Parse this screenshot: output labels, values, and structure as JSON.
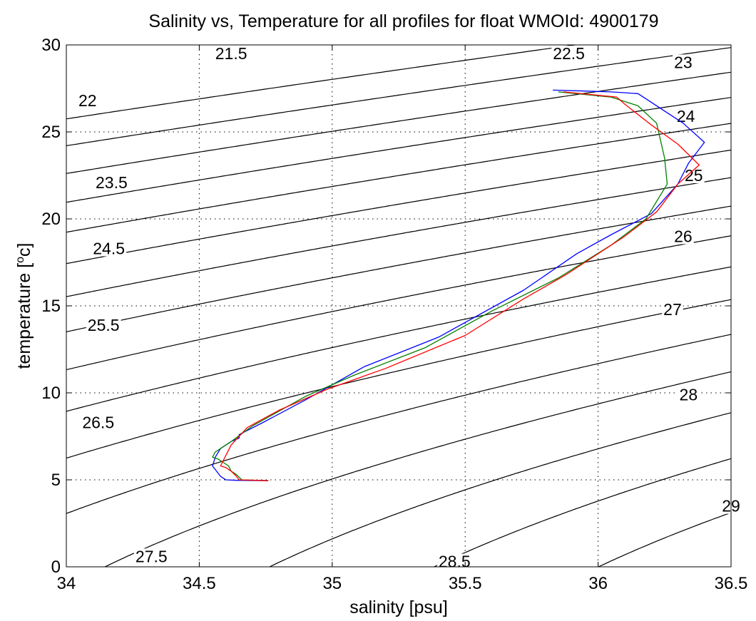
{
  "chart_data": {
    "type": "line",
    "title": "Salinity vs, Temperature for all profiles for float WMOId: 4900179",
    "xlabel": "salinity [psu]",
    "ylabel_main": "temperature [",
    "ylabel_sup": "o",
    "ylabel_tail": "c]",
    "xlim": [
      34,
      36.5
    ],
    "ylim": [
      0,
      30
    ],
    "x_ticks": [
      34,
      34.5,
      35,
      35.5,
      36,
      36.5
    ],
    "x_tick_labels": [
      "34",
      "34.5",
      "35",
      "35.5",
      "36",
      "36.5"
    ],
    "y_ticks": [
      0,
      5,
      10,
      15,
      20,
      25,
      30
    ],
    "y_tick_labels": [
      "0",
      "5",
      "10",
      "15",
      "20",
      "25",
      "30"
    ],
    "grid": true,
    "contours": {
      "levels": [
        21.5,
        22,
        22.5,
        23,
        23.5,
        24,
        24.5,
        25,
        25.5,
        26,
        26.5,
        27,
        27.5,
        28,
        28.5,
        29
      ],
      "labels": [
        {
          "text": "21.5",
          "s": 34.62,
          "t": 29.5
        },
        {
          "text": "22",
          "s": 34.08,
          "t": 26.8
        },
        {
          "text": "22.5",
          "s": 35.89,
          "t": 29.5
        },
        {
          "text": "23",
          "s": 36.32,
          "t": 29.0
        },
        {
          "text": "23.5",
          "s": 34.17,
          "t": 22.1
        },
        {
          "text": "24",
          "s": 36.33,
          "t": 25.9
        },
        {
          "text": "24.5",
          "s": 34.16,
          "t": 18.3
        },
        {
          "text": "25",
          "s": 36.36,
          "t": 22.5
        },
        {
          "text": "25.5",
          "s": 34.14,
          "t": 13.9
        },
        {
          "text": "26",
          "s": 36.32,
          "t": 19.0
        },
        {
          "text": "26.5",
          "s": 34.12,
          "t": 8.3
        },
        {
          "text": "27",
          "s": 36.28,
          "t": 14.8
        },
        {
          "text": "27.5",
          "s": 34.32,
          "t": 0.6
        },
        {
          "text": "28",
          "s": 36.34,
          "t": 9.9
        },
        {
          "text": "28.5",
          "s": 35.46,
          "t": 0.3
        },
        {
          "text": "29",
          "s": 36.5,
          "t": 3.5
        }
      ]
    },
    "series": [
      {
        "color": "#0000ff",
        "x": [
          34.76,
          34.64,
          34.6,
          34.58,
          34.55,
          34.56,
          34.58,
          34.62,
          34.65,
          34.65,
          34.74,
          34.9,
          35.12,
          35.4,
          35.72,
          35.92,
          36.05,
          36.2,
          36.3,
          36.34,
          36.4,
          36.32,
          36.24,
          36.18,
          36.15,
          36.05,
          35.95,
          35.83
        ],
        "y": [
          4.95,
          4.97,
          5.0,
          5.2,
          5.8,
          6.3,
          6.8,
          7.2,
          7.4,
          7.6,
          8.3,
          9.6,
          11.5,
          13.2,
          15.9,
          18.0,
          19.1,
          20.3,
          22.0,
          23.2,
          24.4,
          25.5,
          26.3,
          26.9,
          27.2,
          27.3,
          27.35,
          27.4
        ]
      },
      {
        "color": "#008000",
        "x": [
          34.76,
          34.66,
          34.64,
          34.62,
          34.61,
          34.6,
          34.57,
          34.55,
          34.56,
          34.62,
          34.7,
          34.9,
          35.08,
          35.35,
          35.6,
          35.85,
          36.05,
          36.18,
          36.26,
          36.25,
          36.22,
          36.15,
          36.05,
          35.85
        ],
        "y": [
          4.95,
          5.0,
          5.3,
          5.5,
          5.8,
          5.9,
          6.2,
          6.3,
          6.6,
          7.2,
          8.1,
          9.8,
          11.0,
          12.6,
          14.7,
          16.6,
          18.5,
          20.0,
          22.0,
          23.5,
          25.5,
          26.5,
          27.0,
          27.3
        ]
      },
      {
        "color": "#ff0000",
        "x": [
          34.76,
          34.65,
          34.64,
          34.62,
          34.6,
          34.58,
          34.62,
          34.68,
          34.8,
          34.98,
          35.2,
          35.5,
          35.72,
          35.88,
          36.0,
          36.1,
          36.22,
          36.3,
          36.38,
          36.3,
          36.2,
          36.1,
          36.07,
          35.87
        ],
        "y": [
          4.95,
          5.0,
          5.2,
          5.5,
          5.7,
          5.8,
          7.0,
          8.0,
          9.0,
          10.2,
          11.4,
          13.3,
          15.4,
          16.8,
          18.0,
          19.0,
          20.4,
          22.0,
          23.1,
          24.3,
          25.4,
          26.6,
          27.0,
          27.3
        ]
      }
    ]
  }
}
